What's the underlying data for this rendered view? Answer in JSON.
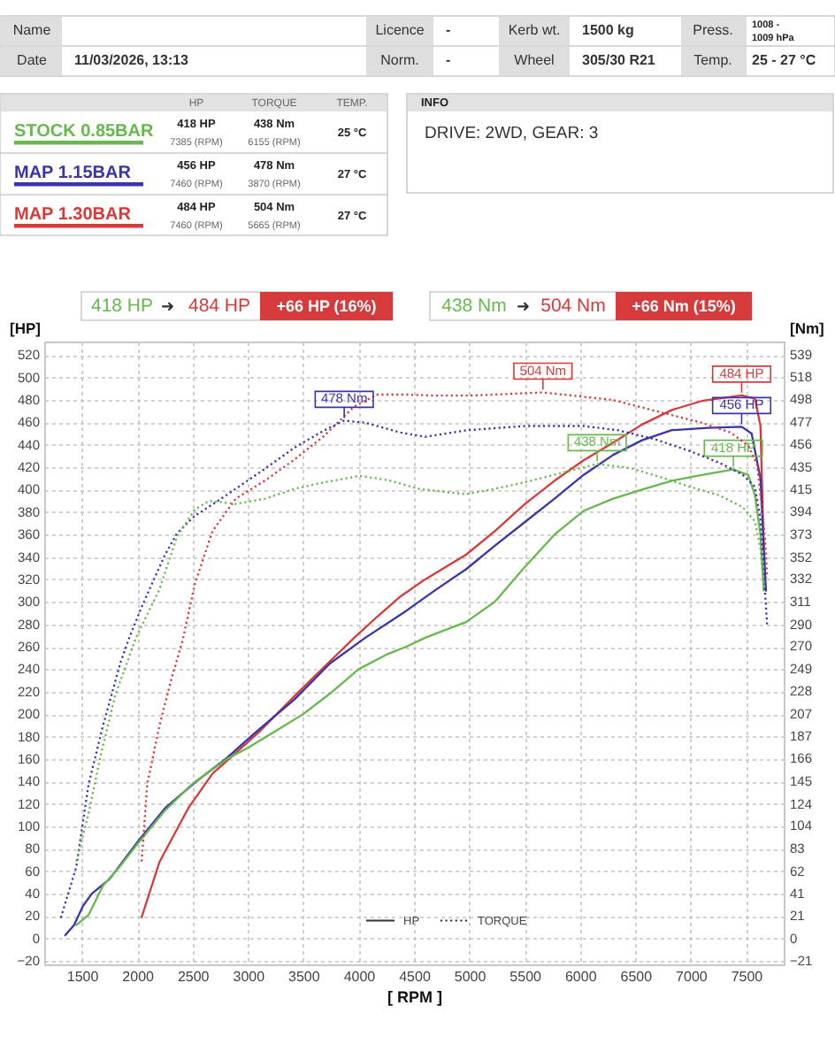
{
  "chart_data": {
    "type": "line",
    "xlabel": "[ RPM ]",
    "ylabel": "[HP]",
    "y2label": "[Nm]",
    "xlim": [
      1160,
      7840
    ],
    "xticks": [
      1500,
      2000,
      2500,
      3000,
      3500,
      4000,
      4500,
      5000,
      5500,
      6000,
      6500,
      7000,
      7500
    ],
    "ylim": [
      -23,
      532
    ],
    "yticks": [
      -20,
      0,
      20,
      40,
      60,
      80,
      100,
      120,
      140,
      160,
      180,
      200,
      220,
      240,
      260,
      280,
      300,
      320,
      340,
      360,
      380,
      400,
      420,
      440,
      460,
      480,
      500,
      520
    ],
    "y2lim": [
      -24,
      551
    ],
    "y2ticks": [
      -21,
      0,
      21,
      41,
      62,
      83,
      104,
      124,
      145,
      166,
      187,
      207,
      228,
      249,
      270,
      290,
      311,
      332,
      352,
      373,
      394,
      415,
      435,
      456,
      477,
      498,
      518,
      539
    ],
    "grid": true,
    "legend": "top left",
    "series": [
      {
        "name": "STOCK 0.85BAR",
        "color": "#66b84f",
        "type": "line",
        "line_style": "solid",
        "x": [
          1450,
          1560,
          1690,
          1850,
          2000,
          2250,
          2500,
          2810,
          3000,
          3250,
          3500,
          3750,
          4000,
          4250,
          4430,
          4600,
          4970,
          5230,
          5500,
          5770,
          6030,
          6300,
          6560,
          6830,
          7100,
          7385,
          7520,
          7580,
          7630,
          7660
        ],
        "values": [
          12,
          21,
          47,
          65,
          84,
          114,
          138,
          160,
          170,
          185,
          200,
          219,
          240,
          253,
          260,
          268,
          282,
          300,
          331,
          360,
          381,
          392,
          400,
          408,
          413,
          418,
          413,
          395,
          360,
          310
        ]
      },
      {
        "name": "MAP 1.15BAR",
        "color": "#3a35a8",
        "type": "line",
        "line_style": "solid",
        "x": [
          1350,
          1430,
          1510,
          1590,
          1750,
          2010,
          2250,
          2520,
          2810,
          3050,
          3420,
          3740,
          4060,
          4430,
          4700,
          4970,
          5230,
          5500,
          5770,
          6030,
          6300,
          6560,
          6830,
          7150,
          7460,
          7550,
          7630,
          7680
        ],
        "values": [
          3,
          12,
          29,
          40,
          53,
          87,
          116,
          139,
          161,
          182,
          213,
          245,
          268,
          292,
          311,
          329,
          350,
          371,
          392,
          413,
          431,
          444,
          453,
          455,
          456,
          450,
          410,
          310
        ]
      },
      {
        "name": "MAP 1.30BAR",
        "color": "#d63a3a",
        "type": "line",
        "line_style": "solid",
        "x": [
          2040,
          2200,
          2460,
          2680,
          2840,
          3100,
          3420,
          3740,
          3960,
          4170,
          4380,
          4600,
          4970,
          5230,
          5500,
          5770,
          6030,
          6300,
          6560,
          6830,
          7100,
          7460,
          7580,
          7630,
          7660
        ],
        "values": [
          19,
          68,
          116,
          147,
          161,
          184,
          216,
          247,
          268,
          287,
          305,
          320,
          342,
          363,
          387,
          408,
          426,
          442,
          458,
          471,
          479,
          484,
          481,
          457,
          347
        ]
      },
      {
        "color": "#66b84f",
        "type": "line",
        "line_style": "dotted",
        "axis": "y2",
        "x": [
          1450,
          1560,
          1670,
          1800,
          1990,
          2200,
          2360,
          2520,
          2650,
          2890,
          3160,
          3420,
          3690,
          4010,
          4270,
          4540,
          4970,
          5230,
          5500,
          5770,
          6155,
          6460,
          6720,
          6990,
          7260,
          7470,
          7580,
          7630,
          7660
        ],
        "values": [
          71,
          115,
          169,
          224,
          278,
          322,
          371,
          396,
          404,
          401,
          406,
          415,
          421,
          427,
          423,
          415,
          410,
          415,
          421,
          428,
          438,
          434,
          426,
          417,
          409,
          398,
          385,
          360,
          327
        ]
      },
      {
        "color": "#3a35a8",
        "type": "line",
        "line_style": "dotted",
        "axis": "y2",
        "x": [
          1310,
          1450,
          1560,
          1690,
          1850,
          1930,
          2040,
          2250,
          2360,
          2520,
          2730,
          2890,
          3160,
          3420,
          3690,
          3870,
          4060,
          4380,
          4600,
          4970,
          5500,
          6030,
          6350,
          6670,
          6990,
          7260,
          7470,
          7580,
          7630,
          7690
        ],
        "values": [
          19,
          66,
          142,
          196,
          255,
          278,
          306,
          354,
          374,
          390,
          404,
          415,
          434,
          453,
          469,
          478,
          476,
          467,
          463,
          469,
          473,
          473,
          469,
          461,
          450,
          439,
          428,
          417,
          387,
          290
        ]
      },
      {
        "color": "#d63a3a",
        "type": "line",
        "line_style": "dotted",
        "axis": "y2",
        "x": [
          2040,
          2090,
          2200,
          2310,
          2410,
          2520,
          2680,
          2890,
          3160,
          3420,
          3690,
          3960,
          4170,
          4430,
          4700,
          4970,
          5230,
          5665,
          6030,
          6300,
          6830,
          7100,
          7360,
          7520,
          7600,
          7630,
          7670,
          7690
        ],
        "values": [
          71,
          142,
          196,
          240,
          275,
          327,
          376,
          406,
          423,
          442,
          464,
          491,
          502,
          502,
          501,
          501,
          502,
          504,
          500,
          497,
          483,
          476,
          467,
          455,
          437,
          409,
          371,
          333
        ]
      }
    ],
    "annotations": [
      "Name",
      "Licence",
      "-",
      "Kerb wt.",
      "1500 kg",
      "Press.",
      "1008 -",
      "1009 hPa",
      "Date",
      "11/03/2026, 13:13",
      "Norm.",
      "-",
      "Wheel",
      "305/30 R21",
      "Temp.",
      "25 - 27 °C",
      "HP",
      "TORQUE",
      "TEMP.",
      "418 HP",
      "7385 (RPM)",
      "438 Nm",
      "6155 (RPM)",
      "25 °C",
      "456 HP",
      "7460 (RPM)",
      "478 Nm",
      "3870 (RPM)",
      "27 °C",
      "484 HP",
      "7460 (RPM)",
      "504 Nm",
      "5665 (RPM)",
      "27 °C",
      "INFO",
      "DRIVE: 2WD,  GEAR: 3",
      "418 HP",
      "➜",
      "484 HP",
      "+66 HP  (16%)",
      "438 Nm",
      "➜",
      "504 Nm",
      "+66 Nm  (15%)",
      "HP",
      "TORQUE",
      "438 Nm",
      "478 Nm",
      "504 Nm",
      "418 HP",
      "456 HP",
      "484 HP"
    ]
  }
}
